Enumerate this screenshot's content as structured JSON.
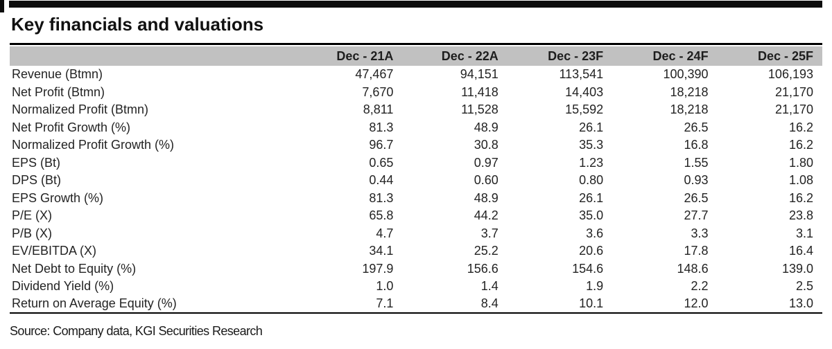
{
  "title": "Key financials and valuations",
  "source": "Source: Company data, KGI Securities Research",
  "colors": {
    "header_band": "#c1c1c1",
    "rule": "#000000",
    "text": "#1a1a1a"
  },
  "table": {
    "label_header": "",
    "columns": [
      "Dec - 21A",
      "Dec - 22A",
      "Dec - 23F",
      "Dec - 24F",
      "Dec - 25F"
    ],
    "rows": [
      {
        "label": "Revenue (Btmn)",
        "values": [
          "47,467",
          "94,151",
          "113,541",
          "100,390",
          "106,193"
        ]
      },
      {
        "label": "Net Profit (Btmn)",
        "values": [
          "7,670",
          "11,418",
          "14,403",
          "18,218",
          "21,170"
        ]
      },
      {
        "label": "Normalized Profit (Btmn)",
        "values": [
          "8,811",
          "11,528",
          "15,592",
          "18,218",
          "21,170"
        ]
      },
      {
        "label": "Net Profit Growth (%)",
        "values": [
          "81.3",
          "48.9",
          "26.1",
          "26.5",
          "16.2"
        ]
      },
      {
        "label": "Normalized Profit Growth (%)",
        "values": [
          "96.7",
          "30.8",
          "35.3",
          "16.8",
          "16.2"
        ]
      },
      {
        "label": "EPS (Bt)",
        "values": [
          "0.65",
          "0.97",
          "1.23",
          "1.55",
          "1.80"
        ]
      },
      {
        "label": "DPS (Bt)",
        "values": [
          "0.44",
          "0.60",
          "0.80",
          "0.93",
          "1.08"
        ]
      },
      {
        "label": "EPS Growth (%)",
        "values": [
          "81.3",
          "48.9",
          "26.1",
          "26.5",
          "16.2"
        ]
      },
      {
        "label": "P/E (X)",
        "values": [
          "65.8",
          "44.2",
          "35.0",
          "27.7",
          "23.8"
        ]
      },
      {
        "label": "P/B (X)",
        "values": [
          "4.7",
          "3.7",
          "3.6",
          "3.3",
          "3.1"
        ]
      },
      {
        "label": "EV/EBITDA (X)",
        "values": [
          "34.1",
          "25.2",
          "20.6",
          "17.8",
          "16.4"
        ]
      },
      {
        "label": "Net Debt to Equity (%)",
        "values": [
          "197.9",
          "156.6",
          "154.6",
          "148.6",
          "139.0"
        ]
      },
      {
        "label": "Dividend Yield (%)",
        "values": [
          "1.0",
          "1.4",
          "1.9",
          "2.2",
          "2.5"
        ]
      },
      {
        "label": "Return on Average Equity (%)",
        "values": [
          "7.1",
          "8.4",
          "10.1",
          "12.0",
          "13.0"
        ]
      }
    ]
  }
}
